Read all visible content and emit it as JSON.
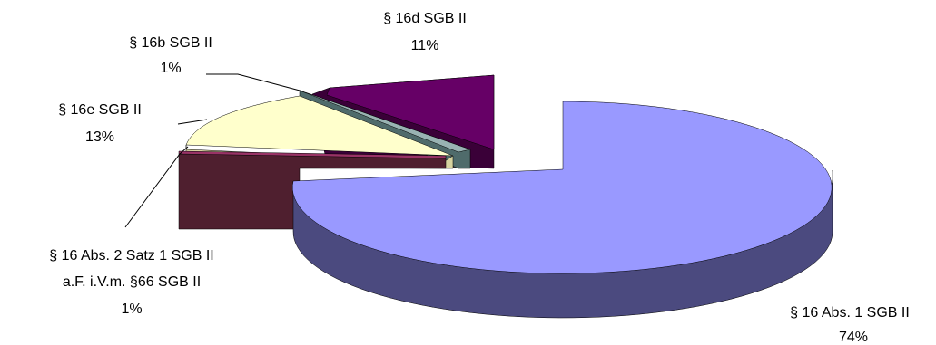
{
  "chart_data": {
    "type": "pie",
    "style": "3d-exploded",
    "slices": [
      {
        "label": "§ 16 Abs. 1 SGB II",
        "label_lines": [
          "§ 16 Abs. 1 SGB II"
        ],
        "pct_label": "74%",
        "value": 74,
        "top_color": "#9999ff",
        "side_color": "#4b4a7f"
      },
      {
        "label": "§ 16 Abs. 2 Satz 1 SGB II a.F. i.V.m. §66 SGB II",
        "label_lines": [
          "§ 16 Abs. 2 Satz 1 SGB II",
          "a.F. i.V.m. §66 SGB II"
        ],
        "pct_label": "1%",
        "value": 1,
        "top_color": "#993366",
        "side_color": "#4f1f2f"
      },
      {
        "label": "§ 16e SGB II",
        "label_lines": [
          "§ 16e SGB II"
        ],
        "pct_label": "13%",
        "value": 13,
        "top_color": "#ffffcc",
        "side_color": "#d6d3a0"
      },
      {
        "label": "§ 16b SGB II",
        "label_lines": [
          "§ 16b SGB II"
        ],
        "pct_label": "1%",
        "value": 1,
        "top_color": "#99b3b3",
        "side_color": "#4f6b6b"
      },
      {
        "label": "§ 16d SGB II",
        "label_lines": [
          "§ 16d SGB II"
        ],
        "pct_label": "11%",
        "value": 11,
        "top_color": "#660066",
        "side_color": "#3a0038"
      }
    ]
  }
}
